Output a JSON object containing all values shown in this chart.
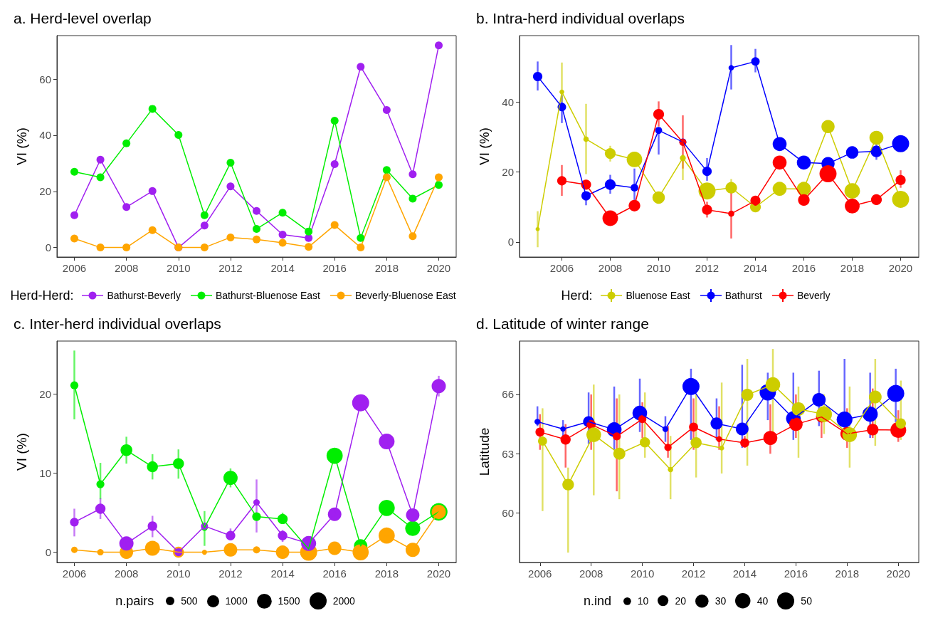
{
  "chart_data": [
    {
      "type": "line",
      "title": "a. Herd-level overlap",
      "ylabel": "VI (%)",
      "x": [
        2006,
        2007,
        2008,
        2009,
        2010,
        2011,
        2012,
        2013,
        2014,
        2015,
        2016,
        2017,
        2018,
        2019,
        2020
      ],
      "xlim": [
        2005.33,
        2020.67
      ],
      "xticks": [
        2006,
        2008,
        2010,
        2012,
        2014,
        2016,
        2018,
        2020
      ],
      "ylim": [
        -3.4,
        75.5
      ],
      "yticks": [
        0,
        20,
        40,
        60
      ],
      "marker": "circle",
      "line_style": "solid",
      "legend": "bottom",
      "legend_title": "Herd-Herd:",
      "series": [
        {
          "name": "Bathurst-Beverly",
          "color": "#a020f0",
          "values": [
            11.5,
            31.3,
            14.4,
            20.1,
            0,
            7.8,
            21.8,
            13,
            4.6,
            3.4,
            29.7,
            64.4,
            49,
            26.1,
            72
          ]
        },
        {
          "name": "Bathurst-Bluenose East",
          "color": "#00ee00",
          "values": [
            27,
            25,
            37.1,
            49.4,
            40.1,
            11.5,
            30.2,
            6.6,
            12.4,
            5.7,
            45.2,
            3.4,
            27.6,
            17.4,
            22.3
          ]
        },
        {
          "name": "Beverly-Bluenose East",
          "color": "#ffa500",
          "values": [
            3.2,
            0,
            0,
            6.2,
            0,
            0,
            3.6,
            2.9,
            1.7,
            0.2,
            8,
            0,
            25,
            4,
            25
          ]
        }
      ]
    },
    {
      "type": "bubble",
      "title": "b. Intra-herd individual overlaps",
      "ylabel": "VI (%)",
      "x": [
        2005,
        2006,
        2007,
        2008,
        2009,
        2010,
        2011,
        2012,
        2013,
        2014,
        2015,
        2016,
        2017,
        2018,
        2019,
        2020
      ],
      "xlim": [
        2004.25,
        2020.75
      ],
      "xticks": [
        2006,
        2008,
        2010,
        2012,
        2014,
        2016,
        2018,
        2020
      ],
      "ylim": [
        -4.3,
        59
      ],
      "yticks": [
        0,
        20,
        40
      ],
      "marker": "circle",
      "line_style": "solid",
      "legend": "bottom",
      "legend_title": "Herd:",
      "series": [
        {
          "name": "Bluenose East",
          "type": "line",
          "marker": "none",
          "color": "#cdcd00",
          "values": [
            3.7,
            42.9,
            29.4,
            25.3,
            23.6,
            12.7,
            24,
            14.6,
            15.5,
            10,
            15.2,
            15.2,
            33,
            14.6,
            29.8,
            12.2
          ],
          "errors": [
            [
              -1.5,
              8.8
            ],
            [
              40,
              51.3
            ],
            [
              19.4,
              39.5
            ],
            [
              23,
              27.5
            ],
            null,
            null,
            [
              17.7,
              25
            ],
            null,
            [
              14,
              18
            ],
            null,
            null,
            null,
            null,
            null,
            null,
            null
          ]
        },
        {
          "name": "Bathurst",
          "type": "line",
          "marker": "none",
          "color": "#0000ff",
          "values": [
            47.3,
            38.6,
            13.2,
            16.4,
            15.5,
            31.9,
            28.6,
            20.2,
            49.8,
            51.6,
            28,
            22.7,
            22.4,
            25.6,
            25.9,
            28.1
          ],
          "errors": [
            [
              43.3,
              51.6
            ],
            [
              34,
              42
            ],
            [
              10.5,
              13.2
            ],
            [
              13.8,
              19.2
            ],
            [
              12,
              21
            ],
            [
              25,
              31.9
            ],
            null,
            [
              17.5,
              24
            ],
            [
              43.6,
              56.3
            ],
            [
              48.5,
              55.2
            ],
            null,
            null,
            null,
            null,
            [
              23.5,
              28
            ],
            null
          ]
        },
        {
          "name": "Beverly",
          "type": "line",
          "marker": "none",
          "color": "#ff0000",
          "values": [
            null,
            17.5,
            16.4,
            6.8,
            10.4,
            36.5,
            28.5,
            9.2,
            8.1,
            11.8,
            22.7,
            12,
            19.5,
            10.3,
            12.1,
            17.7
          ],
          "errors": [
            null,
            [
              13.2,
              22
            ],
            null,
            null,
            null,
            [
              33,
              40.2
            ],
            [
              21,
              36.2
            ],
            [
              7,
              11.5
            ],
            [
              1,
              14.5
            ],
            null,
            null,
            [
              10.5,
              13
            ],
            null,
            null,
            null,
            [
              15.5,
              20.5
            ]
          ]
        },
        {
          "color": "#cdcd00",
          "values": [
            3.7,
            42.9,
            29.4,
            25.3,
            23.6,
            12.7,
            24,
            14.6,
            15.5,
            10,
            15.2,
            15.2,
            33,
            14.6,
            29.8,
            12.2
          ],
          "sizes": [
            0.06,
            0.08,
            0.1,
            0.4,
            0.83,
            0.53,
            0.12,
            1,
            0.46,
            0.4,
            0.67,
            0.67,
            0.6,
            0.83,
            0.67,
            1
          ]
        },
        {
          "color": "#0000ff",
          "values": [
            47.3,
            38.6,
            13.2,
            16.4,
            15.5,
            31.9,
            28.6,
            20.2,
            49.8,
            51.6,
            28,
            22.7,
            22.4,
            25.6,
            25.9,
            28.1
          ],
          "sizes": [
            0.3,
            0.25,
            0.3,
            0.4,
            0.2,
            0.17,
            0.17,
            0.3,
            0.1,
            0.25,
            0.67,
            0.67,
            0.6,
            0.53,
            0.46,
            1
          ]
        },
        {
          "color": "#ff0000",
          "values": [
            null,
            17.5,
            16.4,
            6.8,
            10.4,
            36.5,
            28.5,
            9.2,
            8.1,
            11.8,
            22.7,
            12,
            19.5,
            10.3,
            12.1,
            17.7
          ],
          "sizes": [
            null,
            0.3,
            0.35,
            0.83,
            0.46,
            0.4,
            0.17,
            0.35,
            0.13,
            0.35,
            0.67,
            0.46,
            1,
            0.75,
            0.4,
            0.35
          ]
        }
      ]
    },
    {
      "type": "bubble",
      "title": "c. Inter-herd individual overlaps",
      "ylabel": "VI (%)",
      "x": [
        2006,
        2007,
        2008,
        2009,
        2010,
        2011,
        2012,
        2013,
        2014,
        2015,
        2016,
        2017,
        2018,
        2019,
        2020
      ],
      "xlim": [
        2005.33,
        2020.67
      ],
      "xticks": [
        2006,
        2008,
        2010,
        2012,
        2014,
        2016,
        2018,
        2020
      ],
      "ylim": [
        -1.3,
        26.7
      ],
      "yticks": [
        0,
        10,
        20
      ],
      "marker": "circle",
      "line_style": "solid",
      "legend": "bottom",
      "legend_title": "n.pairs",
      "size_legend": [
        500,
        1000,
        1500,
        2000
      ],
      "series": [
        {
          "type": "line",
          "marker": "none",
          "color": "#a020f0",
          "values": [
            3.8,
            5.5,
            1.1,
            3.3,
            0,
            3.3,
            2.1,
            6.3,
            2.1,
            1.1,
            4.8,
            18.9,
            14,
            4.7,
            21
          ],
          "errors": [
            [
              2,
              5.5
            ],
            [
              4.2,
              6.8
            ],
            null,
            [
              1.9,
              4.6
            ],
            null,
            null,
            [
              1.6,
              3
            ],
            [
              2.5,
              9.2
            ],
            [
              1.3,
              2.8
            ],
            null,
            null,
            null,
            null,
            null,
            [
              19.7,
              22.3
            ]
          ]
        },
        {
          "type": "line",
          "marker": "none",
          "color": "#00ee00",
          "values": [
            21.1,
            8.6,
            12.9,
            10.8,
            11.2,
            3.1,
            9.4,
            4.5,
            4.2,
            0.4,
            12.2,
            0.8,
            5.6,
            3,
            5.1
          ],
          "errors": [
            [
              16.8,
              25.5
            ],
            [
              6.7,
              11.3
            ],
            [
              11.2,
              14.6
            ],
            [
              9.2,
              12.4
            ],
            [
              9.3,
              13
            ],
            [
              0.8,
              5.2
            ],
            [
              8.2,
              10.6
            ],
            null,
            [
              3.6,
              5
            ],
            null,
            null,
            null,
            null,
            null,
            null
          ]
        },
        {
          "type": "line",
          "marker": "none",
          "color": "#ffa500",
          "values": [
            0.3,
            0,
            0,
            0.5,
            0,
            0,
            0.3,
            0.3,
            0,
            0,
            0.5,
            0,
            2.1,
            0.3,
            5.1
          ]
        },
        {
          "color": "#00ee00",
          "values": [
            21.1,
            8.6,
            12.9,
            10.8,
            11.2,
            3.1,
            9.4,
            4.5,
            4.2,
            null,
            12.2,
            0.8,
            5.6,
            3,
            5.1
          ],
          "sizes": [
            435,
            435,
            960,
            830,
            830,
            280,
            1390,
            520,
            720,
            null,
            1800,
            1240,
            1800,
            1540,
            2100
          ]
        },
        {
          "color": "#ffa500",
          "values": [
            0.3,
            0,
            0,
            0.5,
            0,
            0,
            0.3,
            0.3,
            0,
            0,
            0.5,
            0,
            2.1,
            0.3,
            5.1
          ],
          "sizes": [
            280,
            280,
            1240,
            1540,
            830,
            180,
            1240,
            350,
            1240,
            2000,
            1240,
            1800,
            1800,
            1390,
            1390
          ]
        },
        {
          "color": "#a020f0",
          "values": [
            3.8,
            5.5,
            1.1,
            3.3,
            0,
            3.3,
            2.1,
            6.3,
            2.1,
            1.1,
            4.8,
            18.9,
            14,
            4.7,
            21
          ],
          "sizes": [
            520,
            720,
            1390,
            620,
            435,
            350,
            620,
            280,
            620,
            1540,
            1240,
            2000,
            1700,
            1240,
            1390
          ]
        }
      ]
    },
    {
      "type": "bubble",
      "title": "d. Latitude of winter range",
      "ylabel": "Latitude",
      "xlim": [
        2005.2,
        2020.8
      ],
      "xticks": [
        2006,
        2008,
        2010,
        2012,
        2014,
        2016,
        2018,
        2020
      ],
      "ylim": [
        57.5,
        68.7
      ],
      "yticks": [
        60,
        63,
        66
      ],
      "marker": "circle",
      "line_style": "solid",
      "legend": "bottom",
      "legend_title": "n.ind",
      "size_legend": [
        10,
        20,
        30,
        40,
        50
      ],
      "series": [
        {
          "type": "line",
          "marker": "none",
          "color": "#0000ff",
          "x": [
            2005.9,
            2006.9,
            2007.9,
            2008.9,
            2009.9,
            2010.9,
            2011.9,
            2012.9,
            2013.9,
            2014.9,
            2015.9,
            2016.9,
            2017.9,
            2018.9,
            2019.9
          ],
          "values": [
            64.62,
            64.25,
            64.62,
            64.22,
            65.06,
            64.25,
            66.4,
            64.53,
            64.25,
            66.11,
            64.78,
            65.73,
            64.73,
            65,
            66.05
          ],
          "errors": [
            [
              64.4,
              65.4
            ],
            [
              63.9,
              64.7
            ],
            [
              63.5,
              66.1
            ],
            [
              63.2,
              66.4
            ],
            [
              64.1,
              66.8
            ],
            [
              63.6,
              64.9
            ],
            [
              63.7,
              67.3
            ],
            [
              63.7,
              65.8
            ],
            [
              63.3,
              67.5
            ],
            [
              64.7,
              67.1
            ],
            [
              63.7,
              67.1
            ],
            [
              64.4,
              67.2
            ],
            [
              63.7,
              67.8
            ],
            [
              63.8,
              67.1
            ],
            [
              64.6,
              67.3
            ]
          ]
        },
        {
          "type": "line",
          "marker": "none",
          "color": "#ff0000",
          "x": [
            2006,
            2007,
            2008,
            2009,
            2010,
            2011,
            2012,
            2013,
            2014,
            2015,
            2016,
            2017,
            2018,
            2019,
            2020
          ],
          "values": [
            64.1,
            63.72,
            64.48,
            63.88,
            64.75,
            63.32,
            64.35,
            63.74,
            63.55,
            63.8,
            64.49,
            64.86,
            64.01,
            64.22,
            64.2
          ],
          "errors": [
            [
              63.2,
              65
            ],
            [
              62.3,
              64.5
            ],
            [
              63.2,
              66
            ],
            [
              61.1,
              65.8
            ],
            [
              63.8,
              65.6
            ],
            [
              62.8,
              64.4
            ],
            [
              63.2,
              65.8
            ],
            [
              63.2,
              65.4
            ],
            [
              63.3,
              63.9
            ],
            [
              63,
              65.5
            ],
            [
              63.8,
              66
            ],
            [
              63.8,
              65.3
            ],
            [
              63.3,
              65.3
            ],
            [
              63.8,
              66.3
            ],
            [
              63.6,
              65.2
            ]
          ]
        },
        {
          "type": "line",
          "marker": "none",
          "color": "#cdcd00",
          "x": [
            2006.1,
            2007.1,
            2008.1,
            2009.1,
            2010.1,
            2011.1,
            2012.1,
            2013.1,
            2014.1,
            2015.1,
            2016.1,
            2017.1,
            2018.1,
            2019.1,
            2020.1
          ],
          "values": [
            63.64,
            61.44,
            63.96,
            63,
            63.58,
            62.2,
            63.56,
            63.29,
            65.98,
            66.5,
            65.26,
            65,
            63.96,
            65.87,
            64.53
          ],
          "errors": [
            [
              60.1,
              65.3
            ],
            [
              58,
              62.3
            ],
            [
              60.9,
              66.5
            ],
            [
              60.7,
              66
            ],
            [
              62.8,
              66.1
            ],
            [
              60.7,
              63.9
            ],
            [
              61.8,
              66
            ],
            [
              62,
              66.6
            ],
            [
              62.4,
              67.8
            ],
            [
              63.5,
              68.3
            ],
            [
              62.8,
              66.4
            ],
            [
              64,
              66
            ],
            [
              62.3,
              66.4
            ],
            [
              63.4,
              67.8
            ],
            [
              63.7,
              66.7
            ]
          ]
        },
        {
          "color": "#0000ff",
          "x": [
            2005.9,
            2006.9,
            2007.9,
            2008.9,
            2009.9,
            2010.9,
            2011.9,
            2012.9,
            2013.9,
            2014.9,
            2015.9,
            2016.9,
            2017.9,
            2018.9,
            2019.9
          ],
          "values": [
            64.62,
            64.25,
            64.62,
            64.22,
            65.06,
            64.25,
            66.4,
            64.53,
            64.25,
            66.11,
            64.78,
            65.73,
            64.73,
            65,
            66.05
          ],
          "sizes": [
            6,
            5,
            21,
            37,
            37,
            6,
            50,
            25,
            28,
            46,
            37,
            31,
            43,
            40,
            50
          ]
        },
        {
          "color": "#ff0000",
          "x": [
            2006,
            2007,
            2008,
            2009,
            2010,
            2011,
            2012,
            2013,
            2014,
            2015,
            2016,
            2017,
            2018,
            2019,
            2020
          ],
          "values": [
            64.1,
            63.72,
            64.48,
            63.88,
            64.75,
            63.32,
            64.35,
            63.74,
            63.55,
            63.8,
            64.49,
            64.86,
            64.01,
            64.22,
            64.2
          ],
          "sizes": [
            14,
            18,
            14,
            11,
            11,
            9,
            14,
            6,
            14,
            34,
            31,
            21,
            31,
            23,
            43
          ]
        },
        {
          "color": "#cdcd00",
          "x": [
            2006.1,
            2007.1,
            2008.1,
            2009.1,
            2010.1,
            2011.1,
            2012.1,
            2013.1,
            2014.1,
            2015.1,
            2016.1,
            2017.1,
            2018.1,
            2019.1,
            2020.1
          ],
          "values": [
            63.64,
            61.44,
            63.96,
            63,
            63.58,
            62.2,
            63.56,
            63.29,
            65.98,
            66.5,
            65.26,
            65,
            63.96,
            65.87,
            64.53
          ],
          "sizes": [
            14,
            23,
            37,
            25,
            18,
            5,
            21,
            4,
            25,
            37,
            31,
            43,
            37,
            28,
            18
          ]
        }
      ]
    }
  ]
}
